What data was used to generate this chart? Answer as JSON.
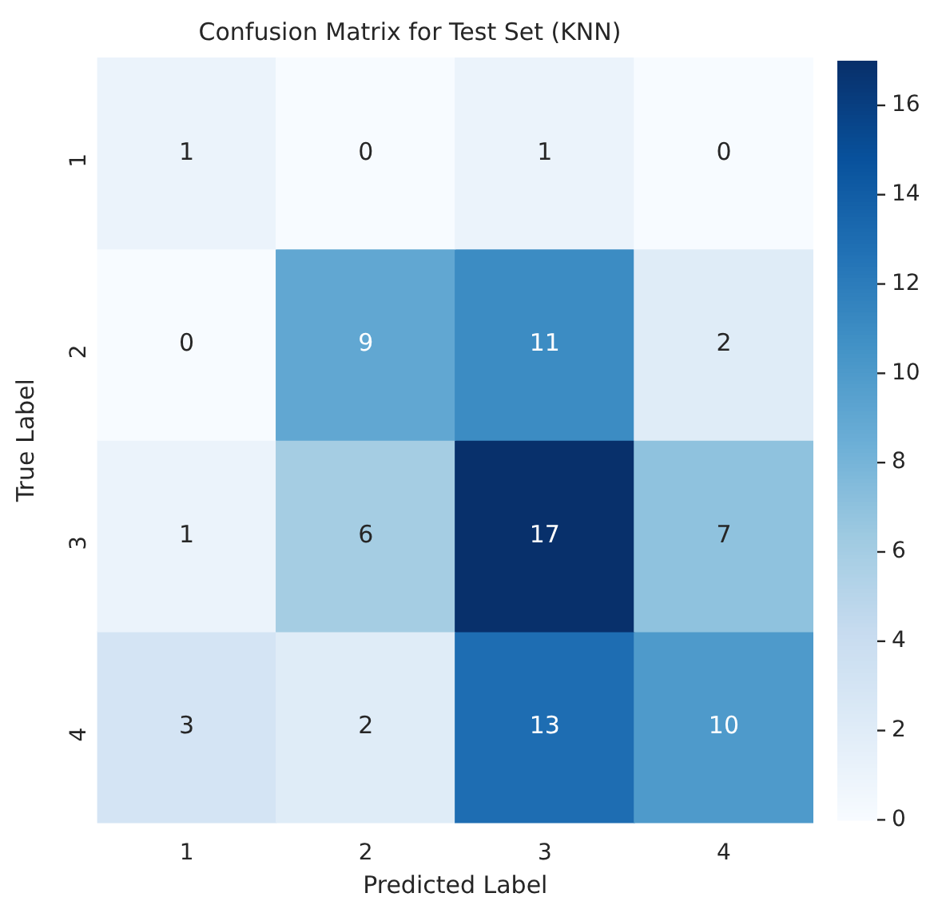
{
  "chart_data": {
    "type": "heatmap",
    "title": "Confusion Matrix for Test Set (KNN)",
    "xlabel": "Predicted Label",
    "ylabel": "True Label",
    "categories": [
      "1",
      "2",
      "3",
      "4"
    ],
    "y_categories": [
      "1",
      "2",
      "3",
      "4"
    ],
    "cells": [
      [
        1,
        0,
        1,
        0
      ],
      [
        0,
        9,
        11,
        2
      ],
      [
        1,
        6,
        17,
        7
      ],
      [
        3,
        2,
        13,
        10
      ]
    ],
    "data_labels": true,
    "clim": [
      0,
      17
    ],
    "cticks": [
      0,
      2,
      4,
      6,
      8,
      10,
      12,
      14,
      16
    ]
  }
}
